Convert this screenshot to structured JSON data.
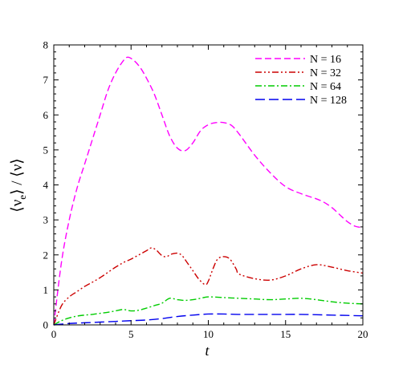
{
  "chart_data": {
    "type": "line",
    "xlabel": "t",
    "ylabel": "⟨ν_e⟩ / ⟨ν⟩",
    "xlim": [
      0,
      20
    ],
    "ylim": [
      0,
      8
    ],
    "xticks": [
      0,
      5,
      10,
      15,
      20
    ],
    "yticks": [
      0,
      1,
      2,
      3,
      4,
      5,
      6,
      7,
      8
    ],
    "grid": false,
    "legend_position": "top-right",
    "series": [
      {
        "name": "N = 16",
        "color": "#ff00ff",
        "dash": "dash",
        "x": [
          0,
          0.5,
          1,
          1.5,
          2,
          2.5,
          3,
          3.5,
          4,
          4.5,
          4.8,
          5.2,
          5.6,
          6,
          6.5,
          7,
          7.5,
          8,
          8.5,
          9,
          9.5,
          10,
          10.5,
          11,
          11.5,
          12,
          13,
          14,
          15,
          16,
          17,
          17.5,
          18,
          18.5,
          19,
          19.5,
          20
        ],
        "y": [
          0,
          1.8,
          3.0,
          3.9,
          4.6,
          5.3,
          6.0,
          6.7,
          7.2,
          7.55,
          7.65,
          7.55,
          7.35,
          7.05,
          6.6,
          6.0,
          5.4,
          5.05,
          4.98,
          5.2,
          5.55,
          5.72,
          5.78,
          5.78,
          5.7,
          5.45,
          4.85,
          4.35,
          3.95,
          3.75,
          3.6,
          3.5,
          3.35,
          3.15,
          2.95,
          2.82,
          2.78
        ]
      },
      {
        "name": "N = 32",
        "color": "#cc0000",
        "dash": "dashdotdot",
        "x": [
          0,
          0.5,
          1,
          1.5,
          2,
          2.5,
          3,
          3.5,
          4,
          4.5,
          5,
          5.5,
          6,
          6.3,
          6.6,
          7,
          7.3,
          7.6,
          8,
          8.3,
          8.6,
          9,
          9.4,
          9.8,
          10,
          10.3,
          10.6,
          11,
          11.4,
          11.8,
          12,
          13,
          14,
          15,
          16,
          17,
          18,
          19,
          20
        ],
        "y": [
          0,
          0.55,
          0.8,
          0.95,
          1.1,
          1.22,
          1.35,
          1.5,
          1.65,
          1.78,
          1.88,
          2.0,
          2.12,
          2.2,
          2.15,
          1.98,
          1.95,
          2.02,
          2.05,
          1.98,
          1.8,
          1.55,
          1.3,
          1.15,
          1.25,
          1.6,
          1.88,
          1.95,
          1.88,
          1.6,
          1.45,
          1.32,
          1.28,
          1.4,
          1.6,
          1.72,
          1.65,
          1.55,
          1.48
        ]
      },
      {
        "name": "N = 64",
        "color": "#00cc00",
        "dash": "dashdot",
        "x": [
          0,
          0.5,
          1,
          1.5,
          2,
          2.5,
          3,
          3.5,
          4,
          4.5,
          5,
          5.5,
          6,
          6.5,
          7,
          7.5,
          8,
          8.5,
          9,
          9.5,
          10,
          11,
          12,
          13,
          14,
          15,
          16,
          17,
          18,
          19,
          20
        ],
        "y": [
          0,
          0.12,
          0.2,
          0.25,
          0.28,
          0.3,
          0.33,
          0.36,
          0.4,
          0.44,
          0.4,
          0.42,
          0.48,
          0.55,
          0.62,
          0.76,
          0.72,
          0.7,
          0.72,
          0.76,
          0.8,
          0.78,
          0.76,
          0.74,
          0.72,
          0.74,
          0.76,
          0.72,
          0.66,
          0.62,
          0.6
        ]
      },
      {
        "name": "N = 128",
        "color": "#0000ee",
        "dash": "longdash",
        "x": [
          0,
          1,
          2,
          3,
          4,
          5,
          6,
          7,
          8,
          9,
          10,
          11,
          12,
          13,
          14,
          15,
          16,
          17,
          18,
          19,
          20
        ],
        "y": [
          0,
          0.04,
          0.06,
          0.08,
          0.1,
          0.12,
          0.14,
          0.18,
          0.24,
          0.28,
          0.31,
          0.31,
          0.3,
          0.3,
          0.3,
          0.3,
          0.3,
          0.29,
          0.28,
          0.27,
          0.26
        ]
      }
    ]
  }
}
